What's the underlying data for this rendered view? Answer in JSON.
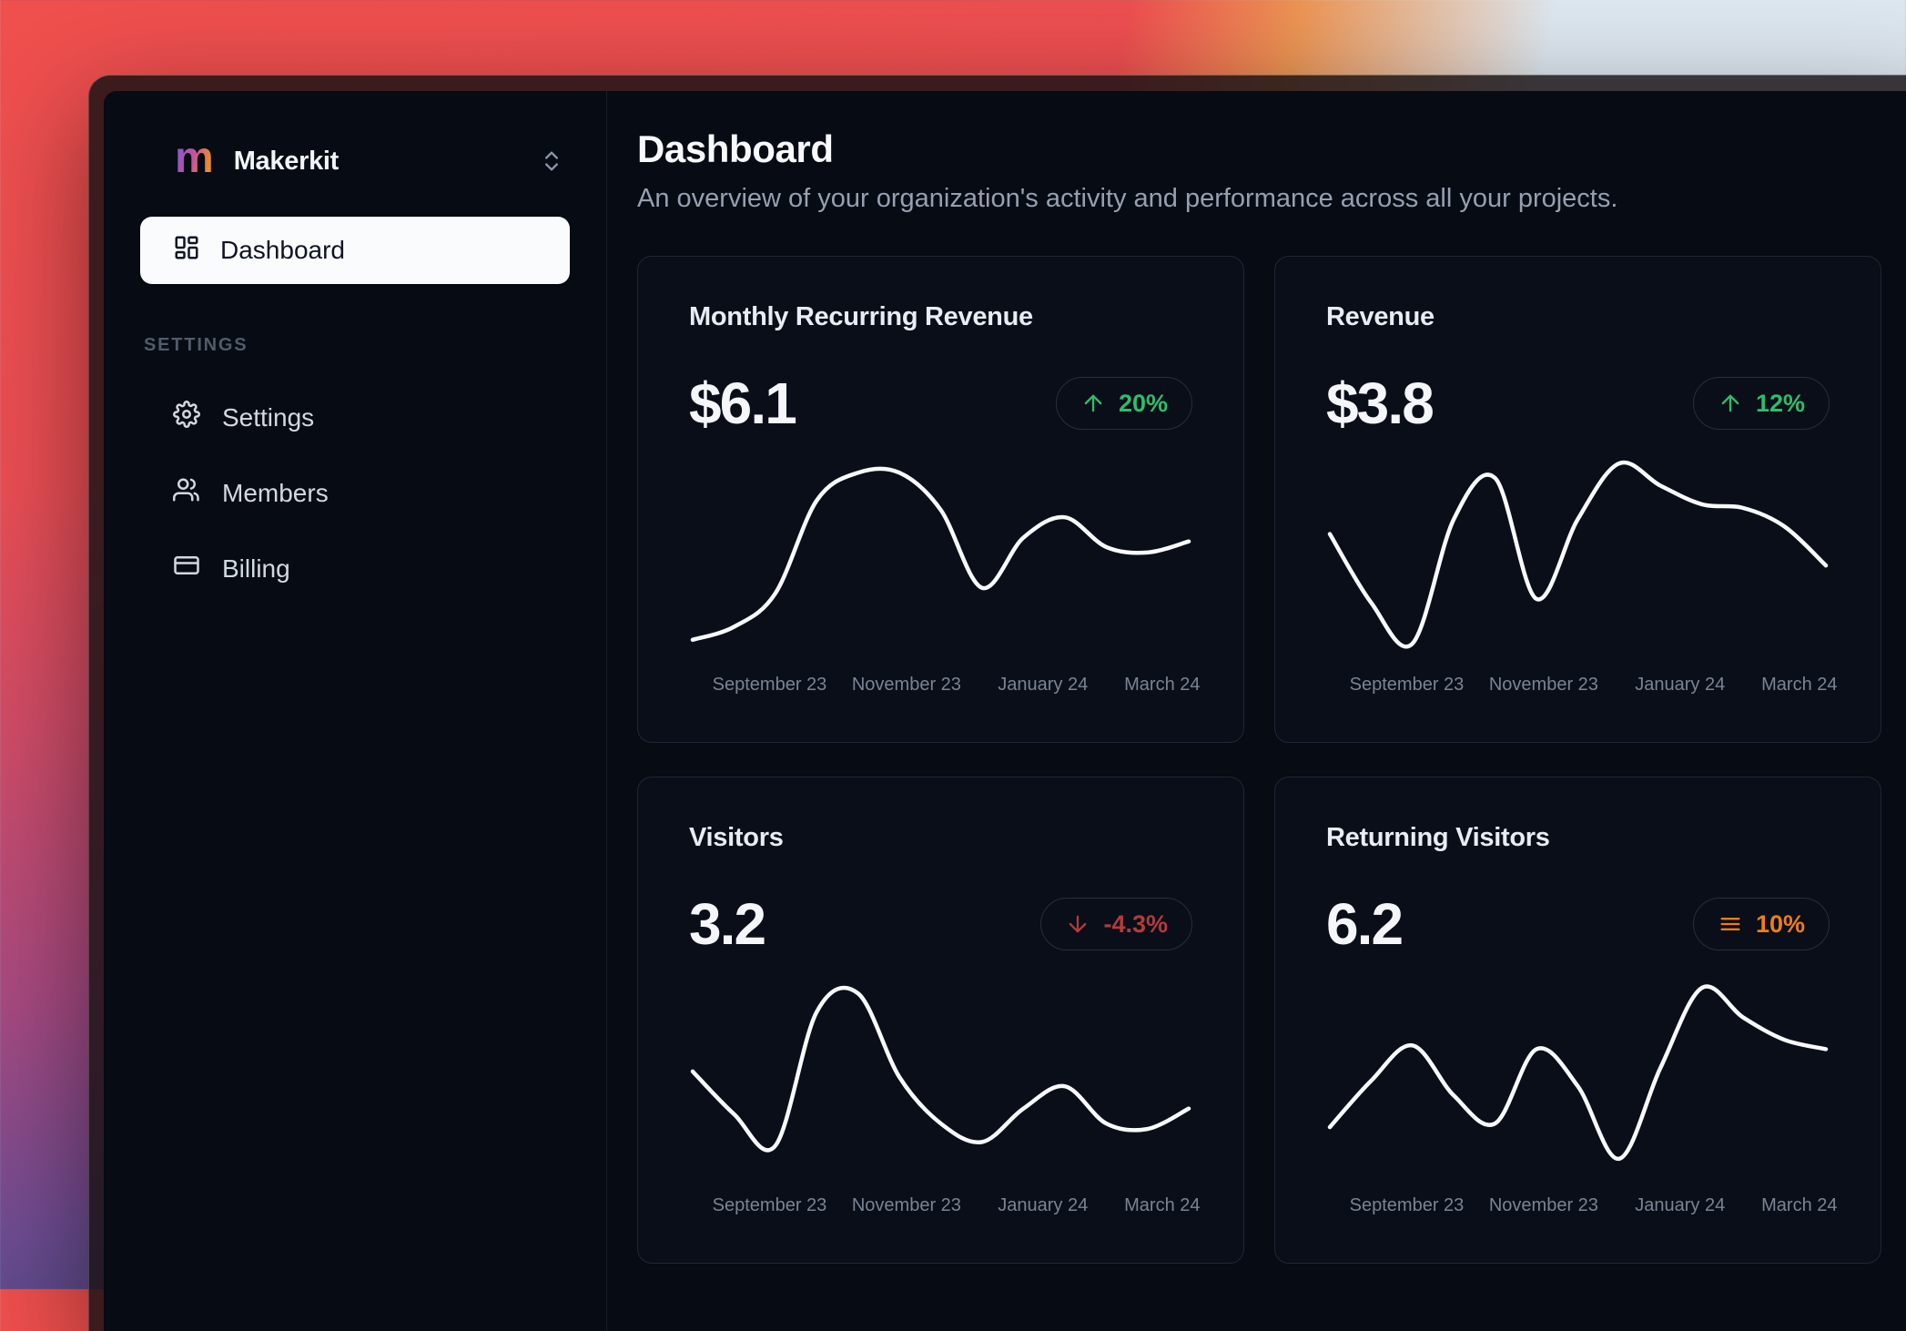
{
  "app": {
    "name": "Makerkit"
  },
  "sidebar": {
    "team_name": "Makerkit",
    "team_logo_letter": "m",
    "nav_dashboard_label": "Dashboard",
    "section_label": "SETTINGS",
    "items": [
      {
        "label": "Settings"
      },
      {
        "label": "Members"
      },
      {
        "label": "Billing"
      }
    ]
  },
  "header": {
    "title": "Dashboard",
    "subtitle": "An overview of your organization's activity and performance across all your projects."
  },
  "colors": {
    "positive": "#2ebd6b",
    "negative": "#b23b3b",
    "warning": "#ef7d17",
    "line": "#f8fafc",
    "card_border": "#1f2835",
    "background": "#060b14"
  },
  "chart_data": [
    {
      "type": "line",
      "title": "Monthly Recurring Revenue",
      "value": "$6.1",
      "trend": {
        "direction": "up",
        "label": "20%",
        "color": "#2ebd6b"
      },
      "x": [
        "September 23",
        "November 23",
        "January 24",
        "March 24"
      ],
      "series": [
        {
          "name": "Monthly Recurring Revenue",
          "values": [
            5,
            12,
            30,
            80,
            95,
            95,
            75,
            33,
            60,
            71,
            55,
            52,
            58
          ]
        }
      ],
      "ylim": [
        0,
        100
      ],
      "grid": false,
      "legend": "none"
    },
    {
      "type": "line",
      "title": "Revenue",
      "value": "$3.8",
      "trend": {
        "direction": "up",
        "label": "12%",
        "color": "#2ebd6b"
      },
      "x": [
        "September 23",
        "November 23",
        "January 24",
        "March 24"
      ],
      "series": [
        {
          "name": "Revenue",
          "values": [
            62,
            25,
            3,
            70,
            92,
            27,
            70,
            100,
            88,
            78,
            76,
            66,
            45
          ]
        }
      ],
      "ylim": [
        0,
        100
      ],
      "grid": false,
      "legend": "none"
    },
    {
      "type": "line",
      "title": "Visitors",
      "value": "3.2",
      "trend": {
        "direction": "down",
        "label": "-4.3%",
        "color": "#b23b3b"
      },
      "x": [
        "September 23",
        "November 23",
        "January 24",
        "March 24"
      ],
      "series": [
        {
          "name": "Visitors",
          "values": [
            53,
            30,
            13,
            85,
            95,
            50,
            25,
            15,
            33,
            45,
            25,
            22,
            33
          ]
        }
      ],
      "ylim": [
        0,
        100
      ],
      "grid": false,
      "legend": "none"
    },
    {
      "type": "line",
      "title": "Returning Visitors",
      "value": "6.2",
      "trend": {
        "direction": "flat",
        "label": "10%",
        "color": "#ef7d17"
      },
      "x": [
        "September 23",
        "November 23",
        "January 24",
        "March 24"
      ],
      "series": [
        {
          "name": "Returning Visitors",
          "values": [
            23,
            48,
            67,
            40,
            25,
            65,
            45,
            6,
            55,
            98,
            82,
            70,
            65
          ]
        }
      ],
      "ylim": [
        0,
        100
      ],
      "grid": false,
      "legend": "none"
    }
  ]
}
